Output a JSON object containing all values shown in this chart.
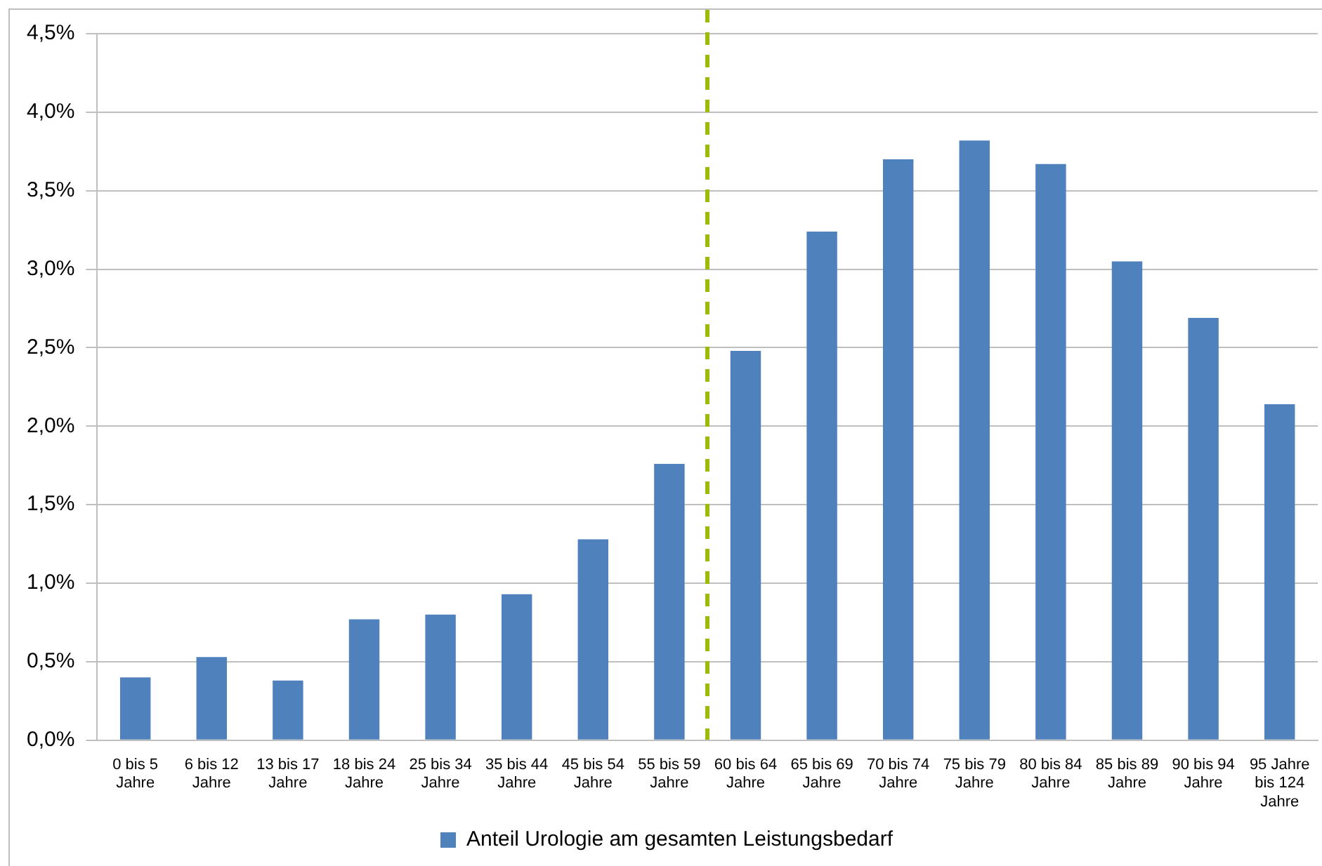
{
  "chart_data": {
    "type": "bar",
    "categories": [
      "0 bis 5\nJahre",
      "6 bis 12\nJahre",
      "13 bis 17\nJahre",
      "18 bis 24\nJahre",
      "25 bis 34\nJahre",
      "35 bis 44\nJahre",
      "45 bis 54\nJahre",
      "55 bis 59\nJahre",
      "60 bis 64\nJahre",
      "65 bis 69\nJahre",
      "70 bis 74\nJahre",
      "75 bis 79\nJahre",
      "80 bis 84\nJahre",
      "85 bis 89\nJahre",
      "90 bis 94\nJahre",
      "95 Jahre\nbis 124\nJahre"
    ],
    "series": [
      {
        "name": "Anteil Urologie am gesamten Leistungsbedarf",
        "color": "#4f81bd",
        "values": [
          0.4,
          0.53,
          0.38,
          0.77,
          0.8,
          0.93,
          1.28,
          1.76,
          2.48,
          3.24,
          3.7,
          3.82,
          3.67,
          3.05,
          2.69,
          2.14
        ]
      }
    ],
    "ylim": [
      0,
      4.5
    ],
    "yticks": [
      {
        "value": 0,
        "label": "0,0%"
      },
      {
        "value": 0.5,
        "label": "0,5%"
      },
      {
        "value": 1,
        "label": "1,0%"
      },
      {
        "value": 1.5,
        "label": "1,5%"
      },
      {
        "value": 2,
        "label": "2,0%"
      },
      {
        "value": 2.5,
        "label": "2,5%"
      },
      {
        "value": 3,
        "label": "3,0%"
      },
      {
        "value": 3.5,
        "label": "3,5%"
      },
      {
        "value": 4,
        "label": "4,0%"
      },
      {
        "value": 4.5,
        "label": "4,5%"
      }
    ],
    "grid": "y",
    "legend": "bottom"
  }
}
